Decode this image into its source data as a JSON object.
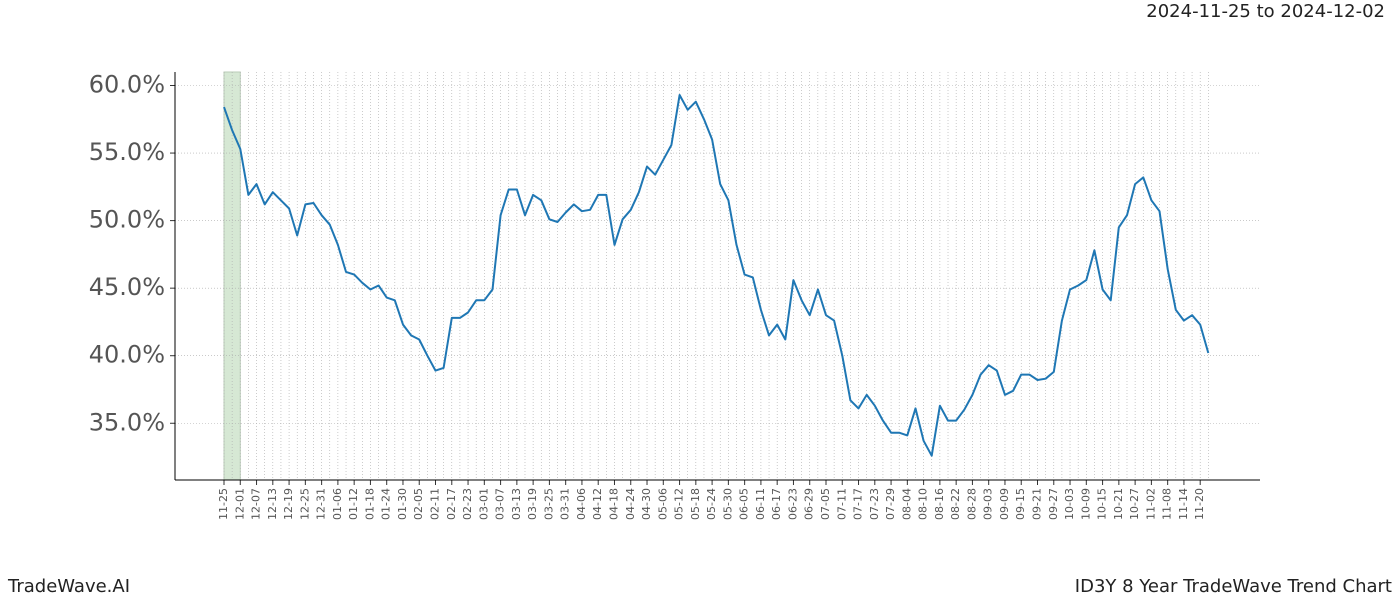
{
  "date_range": "2024-11-25 to 2024-12-02",
  "brand": "TradeWave.AI",
  "caption": "ID3Y 8 Year TradeWave Trend Chart",
  "chart_data": {
    "type": "line",
    "color": "#1f77b4",
    "grid": true,
    "highlight": [
      "11-25",
      "12-01"
    ],
    "highlight_color": "#d6e8d4",
    "categories": [
      "11-25",
      null,
      "12-01",
      null,
      "12-07",
      null,
      "12-13",
      null,
      "12-19",
      null,
      "12-25",
      null,
      "12-31",
      null,
      "01-06",
      null,
      "01-12",
      null,
      "01-18",
      null,
      "01-24",
      null,
      "01-30",
      null,
      "02-05",
      null,
      "02-11",
      null,
      "02-17",
      null,
      "02-23",
      null,
      "03-01",
      null,
      "03-07",
      null,
      "03-13",
      null,
      "03-19",
      null,
      "03-25",
      null,
      "03-31",
      null,
      "04-06",
      null,
      "04-12",
      null,
      "04-18",
      null,
      "04-24",
      null,
      "04-30",
      null,
      "05-06",
      null,
      "05-12",
      null,
      "05-18",
      null,
      "05-24",
      null,
      "05-30",
      null,
      "06-05",
      null,
      "06-11",
      null,
      "06-17",
      null,
      "06-23",
      null,
      "06-29",
      null,
      "07-05",
      null,
      "07-11",
      null,
      "07-17",
      null,
      "07-23",
      null,
      "07-29",
      null,
      "08-04",
      null,
      "08-10",
      null,
      "08-16",
      null,
      "08-22",
      null,
      "08-28",
      null,
      "09-03",
      null,
      "09-09",
      null,
      "09-15",
      null,
      "09-21",
      null,
      "09-27",
      null,
      "10-03",
      null,
      "10-09",
      null,
      "10-15",
      null,
      "10-21",
      null,
      "10-27",
      null,
      "11-02",
      null,
      "11-08",
      null,
      "11-14",
      null,
      "11-20",
      null
    ],
    "values": [
      58.4,
      56.7,
      55.3,
      51.9,
      52.7,
      51.2,
      52.1,
      51.5,
      50.9,
      48.9,
      51.2,
      51.3,
      50.4,
      49.7,
      48.2,
      46.2,
      46.0,
      45.4,
      44.9,
      45.2,
      44.3,
      44.1,
      42.3,
      41.5,
      41.2,
      40.0,
      38.9,
      39.1,
      42.8,
      42.8,
      43.2,
      44.1,
      44.1,
      44.9,
      50.4,
      52.3,
      52.3,
      50.4,
      51.9,
      51.5,
      50.1,
      49.9,
      50.6,
      51.2,
      50.7,
      50.8,
      51.9,
      51.9,
      48.2,
      50.1,
      50.8,
      52.1,
      54.0,
      53.4,
      54.5,
      55.6,
      59.3,
      58.2,
      58.8,
      57.5,
      56.0,
      52.7,
      51.5,
      48.2,
      46.0,
      45.8,
      43.4,
      41.5,
      42.3,
      41.2,
      45.6,
      44.1,
      43.0,
      44.9,
      43.0,
      42.6,
      40.0,
      36.7,
      36.1,
      37.1,
      36.3,
      35.2,
      34.3,
      34.3,
      34.1,
      36.1,
      33.7,
      32.6,
      36.3,
      35.2,
      35.2,
      36.0,
      37.1,
      38.6,
      39.3,
      38.9,
      37.1,
      37.4,
      38.6,
      38.6,
      38.2,
      38.3,
      38.8,
      42.6,
      44.9,
      45.2,
      45.6,
      47.8,
      44.9,
      44.1,
      49.5,
      50.4,
      52.7,
      53.2,
      51.5,
      50.7,
      46.4,
      43.4,
      42.6,
      43.0,
      42.3,
      40.2
    ],
    "ylim": [
      30.8,
      61.0
    ],
    "yticks": [
      {
        "value": 35,
        "label": "35.0%"
      },
      {
        "value": 40,
        "label": "40.0%"
      },
      {
        "value": 45,
        "label": "45.0%"
      },
      {
        "value": 50,
        "label": "50.0%"
      },
      {
        "value": 55,
        "label": "55.0%"
      },
      {
        "value": 60,
        "label": "60.0%"
      }
    ]
  }
}
